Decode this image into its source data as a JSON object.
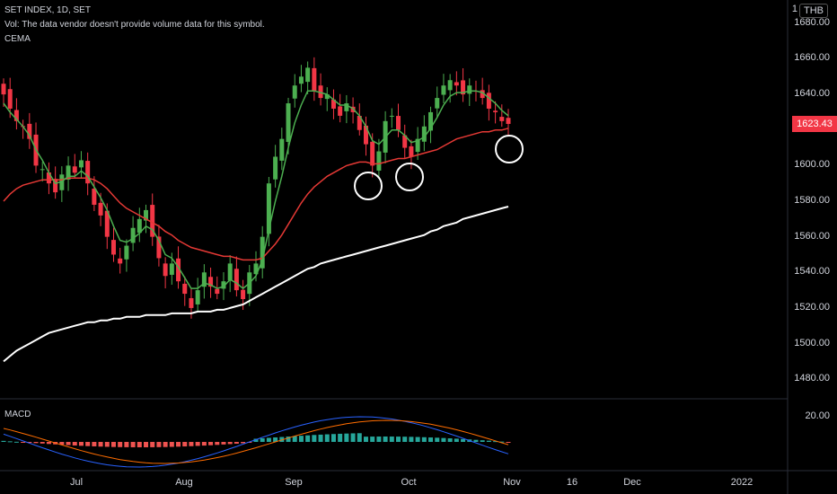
{
  "header": {
    "symbol_line": "SET INDEX, 1D, SET",
    "vol_line": "Vol: The data vendor doesn't provide volume data for this symbol.",
    "indicator_line": "CEMA",
    "currency_badge": "THB"
  },
  "price_axis": {
    "labels": [
      "1680.00",
      "1660.00",
      "1640.00",
      "1620.00",
      "1600.00",
      "1580.00",
      "1560.00",
      "1540.00",
      "1520.00",
      "1500.00",
      "1480.00"
    ],
    "current_price": "1623.43",
    "current_price_color": "#f23645",
    "top_partial_label": "1"
  },
  "macd_panel": {
    "title": "MACD",
    "axis_label": "20.00"
  },
  "time_axis": {
    "labels": [
      "Jul",
      "Aug",
      "Sep",
      "Oct",
      "Nov",
      "16",
      "Dec",
      "2022"
    ]
  },
  "colors": {
    "up": "#4caf50",
    "down": "#f23645",
    "ema_fast": "#4caf50",
    "ema_mid": "#e53935",
    "ema_slow": "#ffffff",
    "macd_line": "#2962ff",
    "signal_line": "#ff6d00",
    "hist_pos": "#26a69a",
    "hist_neg": "#ef5350"
  },
  "chart_data": {
    "type": "candlestick",
    "ylim": [
      1470,
      1688
    ],
    "x_ticks": [
      "Jul",
      "Aug",
      "Sep",
      "Oct",
      "Nov",
      "16",
      "Dec",
      "2022"
    ],
    "closes": [
      1640,
      1632,
      1625,
      1622,
      1615,
      1600,
      1598,
      1590,
      1585,
      1595,
      1600,
      1596,
      1603,
      1590,
      1578,
      1572,
      1560,
      1550,
      1545,
      1555,
      1565,
      1570,
      1575,
      1560,
      1548,
      1538,
      1545,
      1535,
      1528,
      1520,
      1530,
      1540,
      1532,
      1528,
      1535,
      1545,
      1530,
      1525,
      1540,
      1545,
      1560,
      1590,
      1605,
      1615,
      1635,
      1645,
      1650,
      1655,
      1642,
      1638,
      1640,
      1632,
      1628,
      1635,
      1630,
      1620,
      1612,
      1600,
      1608,
      1625,
      1628,
      1620,
      1610,
      1605,
      1615,
      1622,
      1630,
      1638,
      1645,
      1648,
      1645,
      1640,
      1645,
      1642,
      1638,
      1632,
      1630,
      1625,
      1623.43
    ],
    "ema_fast_approx": [
      1635,
      1630,
      1626,
      1622,
      1617,
      1609,
      1603,
      1596,
      1590,
      1591,
      1594,
      1594,
      1597,
      1594,
      1588,
      1582,
      1575,
      1566,
      1558,
      1557,
      1559,
      1562,
      1566,
      1564,
      1558,
      1550,
      1548,
      1543,
      1537,
      1531,
      1531,
      1534,
      1533,
      1531,
      1532,
      1536,
      1534,
      1531,
      1534,
      1538,
      1547,
      1564,
      1580,
      1594,
      1610,
      1624,
      1634,
      1642,
      1642,
      1641,
      1640,
      1637,
      1634,
      1634,
      1632,
      1628,
      1622,
      1614,
      1612,
      1616,
      1620,
      1620,
      1617,
      1613,
      1614,
      1616,
      1621,
      1627,
      1634,
      1639,
      1641,
      1641,
      1642,
      1642,
      1641,
      1638,
      1635,
      1631,
      1628
    ],
    "ema_mid_approx": [
      1580,
      1584,
      1587,
      1589,
      1590,
      1591,
      1592,
      1592,
      1592,
      1592,
      1593,
      1593,
      1593,
      1593,
      1592,
      1590,
      1587,
      1583,
      1579,
      1576,
      1574,
      1572,
      1570,
      1568,
      1566,
      1563,
      1561,
      1558,
      1556,
      1554,
      1553,
      1552,
      1551,
      1550,
      1549,
      1549,
      1548,
      1547,
      1547,
      1547,
      1548,
      1552,
      1556,
      1561,
      1567,
      1573,
      1579,
      1584,
      1588,
      1591,
      1594,
      1596,
      1598,
      1600,
      1601,
      1602,
      1602,
      1601,
      1601,
      1602,
      1603,
      1604,
      1604,
      1605,
      1606,
      1607,
      1608,
      1609,
      1611,
      1613,
      1615,
      1616,
      1617,
      1618,
      1619,
      1619,
      1620,
      1620,
      1621
    ],
    "ema_slow_approx": [
      1490,
      1493,
      1496,
      1498,
      1500,
      1502,
      1504,
      1506,
      1507,
      1508,
      1509,
      1510,
      1511,
      1512,
      1512,
      1513,
      1513,
      1514,
      1514,
      1515,
      1515,
      1515,
      1516,
      1516,
      1516,
      1516,
      1517,
      1517,
      1517,
      1517,
      1518,
      1518,
      1518,
      1519,
      1519,
      1520,
      1521,
      1522,
      1524,
      1526,
      1528,
      1530,
      1532,
      1534,
      1536,
      1538,
      1540,
      1542,
      1543,
      1545,
      1546,
      1547,
      1548,
      1549,
      1550,
      1551,
      1552,
      1553,
      1554,
      1555,
      1556,
      1557,
      1558,
      1559,
      1560,
      1561,
      1563,
      1564,
      1566,
      1567,
      1568,
      1570,
      1571,
      1572,
      1573,
      1574,
      1575,
      1576,
      1577
    ]
  }
}
